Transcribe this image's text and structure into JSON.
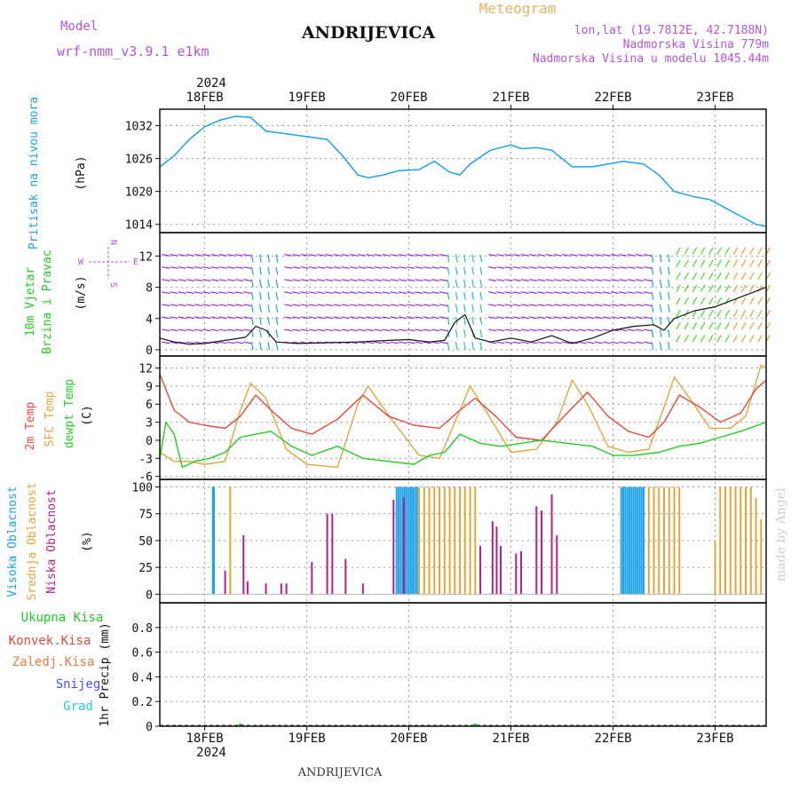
{
  "header": {
    "model_label": "Model",
    "model_name": "wrf-nmm_v3.9.1 e1km",
    "station": "ANDRIJEVICA",
    "product": "Meteogram",
    "lonlat": "lon,lat (19.7812E, 42.7188N)",
    "elevation": "Nadmorska Visina 779m",
    "model_elevation": "Nadmorska Visina u modelu 1045.44m",
    "year": "2024",
    "footer_station": "ANDRIJEVICA",
    "credit": "made by Angel"
  },
  "time_axis": {
    "dates": [
      "18FEB",
      "19FEB",
      "20FEB",
      "21FEB",
      "22FEB",
      "23FEB"
    ],
    "year": "2024",
    "start_day": 17.56,
    "end_day": 23.5
  },
  "colors": {
    "pressure": "#1ea2e6",
    "temp2m": "#e8483d",
    "sfc_temp": "#e0a63c",
    "dewpoint": "#22cc22",
    "cloud_high": "#1ea2e6",
    "cloud_mid": "#e0a63c",
    "cloud_low": "#b0208f",
    "violet_text": "#b455d8",
    "orange_text": "#e8b060"
  },
  "panels": {
    "pressure": {
      "labels": [
        "Pritisak na nivou mora",
        "(hPa)"
      ],
      "ticks": [
        1014,
        1020,
        1026,
        1032
      ]
    },
    "wind": {
      "labels": [
        "10m Vjetar",
        "Brzina i Pravac",
        "(m/s)"
      ],
      "ticks": [
        0,
        4,
        8,
        12
      ],
      "compass": {
        "n": "N",
        "s": "S",
        "e": "E",
        "w": "W"
      }
    },
    "temp": {
      "labels": [
        "2m Temp",
        "SFC Temp",
        "dewpt Temp",
        "(C)"
      ],
      "ticks": [
        -6,
        -3,
        0,
        3,
        6,
        9,
        12
      ]
    },
    "cloud": {
      "labels": [
        "Visoka Oblacnost",
        "Srednja Oblacnost",
        "Niska Oblacnost",
        "(%)"
      ],
      "ticks": [
        0,
        25,
        50,
        75,
        100
      ]
    },
    "precip": {
      "labels": [
        "Ukupna Kisa",
        "Konvek.Kisa",
        "Zaledj.Kisa",
        "Snijeg",
        "Grad"
      ],
      "ylabel": "1hr Precip (mm)",
      "ticks": [
        0,
        0.2,
        0.4,
        0.6,
        0.8
      ]
    }
  },
  "chart_data": {
    "type": "line",
    "x_unit": "day of February 2024",
    "pressure_hPa": {
      "x": [
        17.56,
        17.7,
        17.85,
        18.0,
        18.15,
        18.3,
        18.45,
        18.6,
        18.8,
        19.0,
        19.2,
        19.35,
        19.5,
        19.6,
        19.75,
        19.9,
        20.1,
        20.25,
        20.4,
        20.5,
        20.6,
        20.8,
        21.0,
        21.1,
        21.25,
        21.4,
        21.6,
        21.8,
        21.95,
        22.1,
        22.3,
        22.45,
        22.6,
        22.8,
        22.95,
        23.1,
        23.25,
        23.4,
        23.5
      ],
      "values": [
        1024.5,
        1026.5,
        1029.5,
        1031.8,
        1033.0,
        1033.7,
        1033.5,
        1031.0,
        1030.5,
        1030.0,
        1029.5,
        1026.5,
        1023.0,
        1022.5,
        1023.0,
        1023.8,
        1024.0,
        1025.5,
        1023.5,
        1023.0,
        1025.0,
        1027.5,
        1028.5,
        1027.8,
        1028.0,
        1027.5,
        1024.5,
        1024.5,
        1025.0,
        1025.5,
        1025.0,
        1023.0,
        1020.0,
        1019.0,
        1018.5,
        1017.0,
        1015.5,
        1014.0,
        1013.6
      ]
    },
    "wind_speed_ms": {
      "x": [
        17.56,
        17.7,
        17.85,
        18.0,
        18.2,
        18.4,
        18.5,
        18.6,
        18.7,
        18.9,
        19.2,
        19.5,
        19.8,
        20.0,
        20.2,
        20.35,
        20.45,
        20.55,
        20.65,
        20.8,
        21.0,
        21.2,
        21.4,
        21.6,
        21.8,
        22.0,
        22.2,
        22.4,
        22.5,
        22.6,
        22.8,
        23.0,
        23.2,
        23.5
      ],
      "values": [
        1.5,
        1.0,
        0.7,
        0.8,
        1.2,
        1.6,
        3.0,
        2.5,
        1.0,
        0.8,
        0.9,
        1.0,
        1.2,
        1.3,
        1.0,
        1.2,
        3.5,
        4.5,
        1.5,
        1.0,
        1.5,
        1.0,
        1.8,
        0.8,
        1.5,
        2.5,
        3.0,
        3.2,
        2.5,
        4.0,
        5.0,
        5.5,
        6.5,
        8.0
      ]
    },
    "temp_2m_C": {
      "x": [
        17.56,
        17.7,
        17.85,
        18.0,
        18.2,
        18.35,
        18.5,
        18.65,
        18.85,
        19.05,
        19.3,
        19.55,
        19.8,
        20.05,
        20.3,
        20.5,
        20.65,
        20.85,
        21.05,
        21.3,
        21.55,
        21.75,
        21.95,
        22.15,
        22.35,
        22.5,
        22.65,
        22.85,
        23.05,
        23.25,
        23.4,
        23.5
      ],
      "values": [
        11.0,
        5.0,
        3.0,
        2.5,
        2.0,
        4.0,
        7.5,
        5.0,
        2.0,
        1.0,
        3.5,
        7.5,
        4.0,
        2.5,
        2.0,
        5.0,
        7.0,
        4.0,
        0.5,
        0.0,
        4.5,
        8.0,
        4.0,
        1.5,
        0.5,
        3.0,
        7.5,
        5.5,
        3.0,
        4.5,
        8.5,
        10.0
      ]
    },
    "temp_sfc_C": {
      "x": [
        17.56,
        17.7,
        17.85,
        18.0,
        18.2,
        18.35,
        18.45,
        18.6,
        18.8,
        19.0,
        19.3,
        19.5,
        19.6,
        19.85,
        20.1,
        20.3,
        20.5,
        20.6,
        20.75,
        21.0,
        21.25,
        21.45,
        21.6,
        21.75,
        21.95,
        22.15,
        22.35,
        22.5,
        22.6,
        22.75,
        22.95,
        23.15,
        23.3,
        23.45,
        23.5
      ],
      "values": [
        -2.0,
        -3.5,
        -3.5,
        -4.0,
        -3.5,
        5.0,
        9.5,
        7.0,
        -1.5,
        -4.0,
        -4.5,
        6.0,
        9.0,
        3.0,
        -2.5,
        -3.0,
        5.0,
        9.0,
        5.0,
        -2.0,
        -1.5,
        3.0,
        10.0,
        6.0,
        -1.0,
        -2.0,
        -1.5,
        5.5,
        10.5,
        7.0,
        2.0,
        2.0,
        4.0,
        12.5,
        12.0
      ]
    },
    "dewpoint_C": {
      "x": [
        17.56,
        17.62,
        17.7,
        17.78,
        17.9,
        18.05,
        18.2,
        18.35,
        18.5,
        18.65,
        18.85,
        19.05,
        19.3,
        19.55,
        19.8,
        20.05,
        20.2,
        20.35,
        20.5,
        20.7,
        20.9,
        21.1,
        21.3,
        21.55,
        21.8,
        22.0,
        22.2,
        22.45,
        22.65,
        22.85,
        23.05,
        23.25,
        23.5
      ],
      "values": [
        -3.0,
        3.0,
        1.0,
        -4.5,
        -3.5,
        -3.0,
        -2.0,
        0.5,
        1.0,
        1.5,
        -1.0,
        -2.5,
        -1.0,
        -3.0,
        -3.5,
        -4.0,
        -2.5,
        -2.0,
        1.0,
        -0.5,
        -1.0,
        -0.5,
        0.0,
        -0.5,
        -1.0,
        -2.5,
        -2.5,
        -2.0,
        -1.0,
        -0.5,
        0.5,
        1.5,
        3.0
      ]
    },
    "cloud_high_pct": {
      "x": [
        18.08,
        18.09,
        19.88,
        19.9,
        19.92,
        19.94,
        19.96,
        19.98,
        20.0,
        20.02,
        20.04,
        20.06,
        20.08,
        22.08,
        22.1,
        22.12,
        22.14,
        22.16,
        22.18,
        22.2,
        22.22,
        22.24,
        22.26,
        22.28,
        22.3
      ],
      "values": [
        100,
        100,
        100,
        100,
        100,
        100,
        100,
        100,
        100,
        100,
        100,
        100,
        100,
        100,
        100,
        100,
        100,
        100,
        100,
        100,
        100,
        100,
        100,
        100,
        100
      ]
    },
    "cloud_mid_pct": {
      "x": [
        18.25,
        20.1,
        20.15,
        20.2,
        20.25,
        20.3,
        20.35,
        20.4,
        20.45,
        20.5,
        20.55,
        20.6,
        20.65,
        22.3,
        22.35,
        22.4,
        22.45,
        22.5,
        22.55,
        22.6,
        22.65,
        23.0,
        23.05,
        23.1,
        23.15,
        23.2,
        23.25,
        23.3,
        23.35,
        23.4,
        23.45
      ],
      "values": [
        100,
        100,
        100,
        100,
        100,
        100,
        100,
        100,
        100,
        100,
        100,
        100,
        100,
        100,
        100,
        100,
        100,
        100,
        100,
        100,
        100,
        50,
        100,
        100,
        100,
        100,
        100,
        100,
        100,
        90,
        70
      ]
    },
    "cloud_low_pct": {
      "x": [
        18.2,
        18.38,
        18.42,
        18.6,
        18.75,
        18.8,
        19.05,
        19.2,
        19.25,
        19.38,
        19.55,
        19.85,
        19.95,
        20.7,
        20.82,
        20.86,
        20.9,
        21.05,
        21.1,
        21.25,
        21.3,
        21.4,
        21.45
      ],
      "values": [
        22,
        55,
        12,
        10,
        10,
        10,
        30,
        75,
        75,
        33,
        10,
        88,
        90,
        45,
        68,
        63,
        45,
        38,
        40,
        82,
        78,
        93,
        55
      ]
    },
    "precip_total_mm": {
      "x": [
        18.35,
        20.65,
        23.2
      ],
      "values": [
        0.02,
        0.02,
        0.01
      ]
    }
  }
}
